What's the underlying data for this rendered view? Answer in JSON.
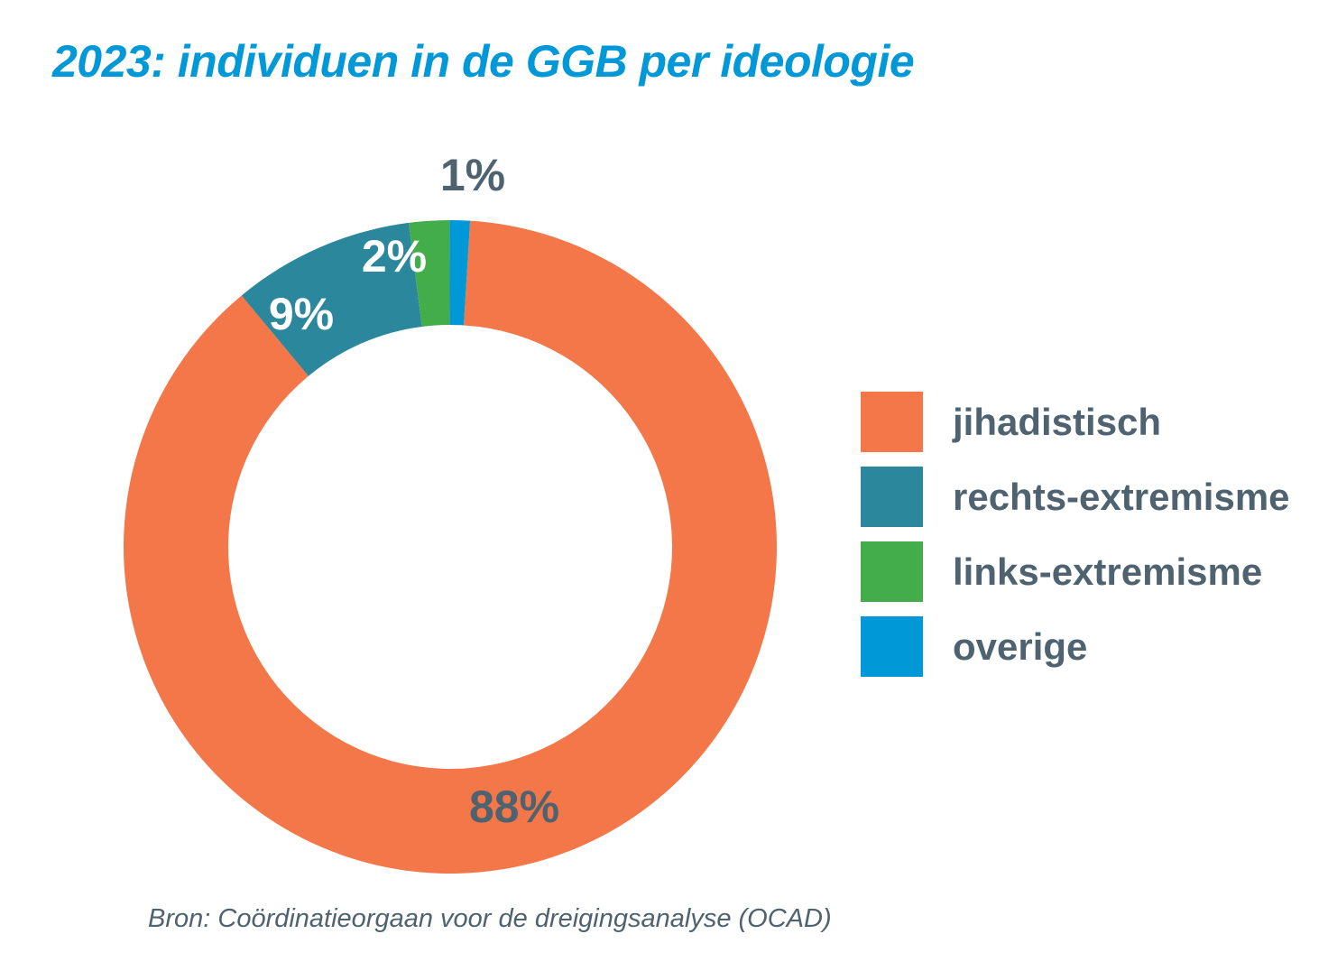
{
  "chart_data": {
    "type": "pie",
    "donut": true,
    "title": "2023: individuen in de GGB per ideologie",
    "source": "Bron: Coördinatieorgaan voor de dreigingsanalyse (OCAD)",
    "legend_position": "right",
    "categories": [
      "jihadistisch",
      "rechts-extremisme",
      "links-extremisme",
      "overige"
    ],
    "values": [
      88,
      9,
      2,
      1
    ],
    "labels": [
      "88%",
      "9%",
      "2%",
      "1%"
    ],
    "colors": [
      "#f47749",
      "#2b879b",
      "#43ad49",
      "#0098d7"
    ],
    "label_colors": [
      "#4e6270",
      "#ffffff",
      "#ffffff",
      "#4e6270"
    ]
  },
  "style": {
    "title_color": "#0098d7",
    "text_color": "#4e6270"
  }
}
